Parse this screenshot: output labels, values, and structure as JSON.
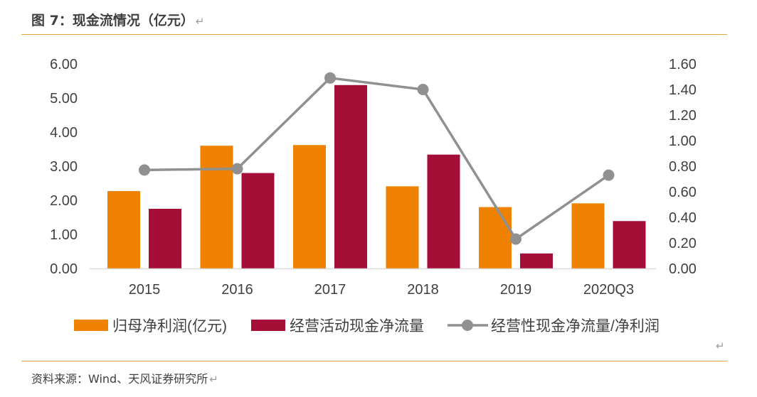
{
  "header": {
    "title": "图 7：现金流情况（亿元）",
    "return_mark": "↵"
  },
  "footer": {
    "source": "资料来源：Wind、天风证券研究所",
    "return_mark": "↵"
  },
  "chart_return_mark": "↵",
  "colors": {
    "net_profit": "#ef8200",
    "operating_cf": "#a50f37",
    "ratio_line": "#909090",
    "rule": "#e7a33e",
    "text": "#404040"
  },
  "chart_data": {
    "type": "bar",
    "categories": [
      "2015",
      "2016",
      "2017",
      "2018",
      "2019",
      "2020Q3"
    ],
    "series": [
      {
        "name": "归母净利润(亿元)",
        "type": "bar",
        "axis": "left",
        "values": [
          2.27,
          3.6,
          3.62,
          2.41,
          1.8,
          1.91
        ]
      },
      {
        "name": "经营活动现金净流量",
        "type": "bar",
        "axis": "left",
        "values": [
          1.75,
          2.8,
          5.38,
          3.34,
          0.44,
          1.39
        ]
      },
      {
        "name": "经营性现金净流量/净利润",
        "type": "line",
        "axis": "right",
        "values": [
          0.77,
          0.78,
          1.49,
          1.4,
          0.23,
          0.73
        ]
      }
    ],
    "y_left": {
      "ticks": [
        "0.00",
        "1.00",
        "2.00",
        "3.00",
        "4.00",
        "5.00",
        "6.00"
      ],
      "ylim": [
        0,
        6
      ]
    },
    "y_right": {
      "ticks": [
        "0.00",
        "0.20",
        "0.40",
        "0.60",
        "0.80",
        "1.00",
        "1.20",
        "1.40",
        "1.60"
      ],
      "ylim": [
        0,
        1.6
      ]
    },
    "grid": false,
    "legend_position": "bottom"
  }
}
